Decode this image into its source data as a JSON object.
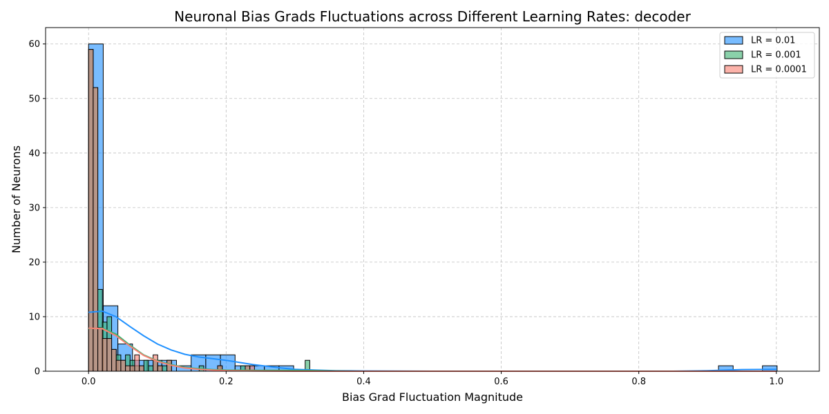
{
  "chart_data": {
    "type": "histogram",
    "title": "Neuronal Bias Grads Fluctuations across Different Learning Rates: decoder",
    "xlabel": "Bias Grad Fluctuation Magnitude",
    "ylabel": "Number of Neurons",
    "xlim": [
      -0.0625,
      1.0625
    ],
    "ylim": [
      0,
      63
    ],
    "xticks": [
      0.0,
      0.2,
      0.4,
      0.6,
      0.8,
      1.0
    ],
    "xtick_labels": [
      "0.0",
      "0.2",
      "0.4",
      "0.6",
      "0.8",
      "1.0"
    ],
    "yticks": [
      0,
      10,
      20,
      30,
      40,
      50,
      60
    ],
    "ytick_labels": [
      "0",
      "10",
      "20",
      "30",
      "40",
      "50",
      "60"
    ],
    "grid": true,
    "legend_position": "top-right",
    "series": [
      {
        "name": "LR = 0.01",
        "color": "#1e90ff",
        "bin_width": 0.0213,
        "bins": [
          {
            "x": 0.0,
            "count": 60
          },
          {
            "x": 0.0213,
            "count": 12
          },
          {
            "x": 0.0426,
            "count": 5
          },
          {
            "x": 0.0639,
            "count": 2
          },
          {
            "x": 0.0852,
            "count": 2
          },
          {
            "x": 0.1065,
            "count": 2
          },
          {
            "x": 0.1278,
            "count": 1
          },
          {
            "x": 0.1491,
            "count": 3
          },
          {
            "x": 0.1704,
            "count": 3
          },
          {
            "x": 0.1917,
            "count": 3
          },
          {
            "x": 0.213,
            "count": 1
          },
          {
            "x": 0.2343,
            "count": 1
          },
          {
            "x": 0.2556,
            "count": 1
          },
          {
            "x": 0.2769,
            "count": 1
          },
          {
            "x": 0.9159,
            "count": 1
          },
          {
            "x": 0.9798,
            "count": 1
          }
        ],
        "kde": [
          [
            0.0,
            10.8
          ],
          [
            0.02,
            11.0
          ],
          [
            0.04,
            10.0
          ],
          [
            0.06,
            8.2
          ],
          [
            0.08,
            6.5
          ],
          [
            0.1,
            5.0
          ],
          [
            0.12,
            3.9
          ],
          [
            0.14,
            3.1
          ],
          [
            0.16,
            2.6
          ],
          [
            0.18,
            2.3
          ],
          [
            0.2,
            2.0
          ],
          [
            0.22,
            1.6
          ],
          [
            0.24,
            1.2
          ],
          [
            0.26,
            0.9
          ],
          [
            0.28,
            0.6
          ],
          [
            0.3,
            0.35
          ],
          [
            0.33,
            0.2
          ],
          [
            0.36,
            0.1
          ],
          [
            0.4,
            0.05
          ],
          [
            0.5,
            0.0
          ],
          [
            0.7,
            0.0
          ],
          [
            0.85,
            0.0
          ],
          [
            0.9,
            0.1
          ],
          [
            0.95,
            0.3
          ],
          [
            1.0,
            0.35
          ]
        ]
      },
      {
        "name": "LR = 0.001",
        "color": "#3cb371",
        "bin_width": 0.0067,
        "bins": [
          {
            "x": 0.0,
            "count": 59
          },
          {
            "x": 0.0067,
            "count": 52
          },
          {
            "x": 0.0134,
            "count": 15
          },
          {
            "x": 0.0201,
            "count": 9
          },
          {
            "x": 0.0268,
            "count": 10
          },
          {
            "x": 0.0335,
            "count": 4
          },
          {
            "x": 0.0402,
            "count": 3
          },
          {
            "x": 0.0469,
            "count": 2
          },
          {
            "x": 0.0536,
            "count": 3
          },
          {
            "x": 0.0603,
            "count": 2
          },
          {
            "x": 0.067,
            "count": 1
          },
          {
            "x": 0.0737,
            "count": 1
          },
          {
            "x": 0.0804,
            "count": 2
          },
          {
            "x": 0.0871,
            "count": 1
          },
          {
            "x": 0.0938,
            "count": 2
          },
          {
            "x": 0.1005,
            "count": 1
          },
          {
            "x": 0.1072,
            "count": 1
          },
          {
            "x": 0.1139,
            "count": 2
          },
          {
            "x": 0.1608,
            "count": 1
          },
          {
            "x": 0.1876,
            "count": 1
          },
          {
            "x": 0.2211,
            "count": 1
          },
          {
            "x": 0.2278,
            "count": 1
          },
          {
            "x": 0.3149,
            "count": 2
          }
        ],
        "kde": [
          [
            0.0,
            7.8
          ],
          [
            0.02,
            7.9
          ],
          [
            0.04,
            6.8
          ],
          [
            0.06,
            4.8
          ],
          [
            0.08,
            3.0
          ],
          [
            0.1,
            1.9
          ],
          [
            0.12,
            1.2
          ],
          [
            0.14,
            0.7
          ],
          [
            0.16,
            0.45
          ],
          [
            0.18,
            0.3
          ],
          [
            0.2,
            0.2
          ],
          [
            0.25,
            0.15
          ],
          [
            0.3,
            0.15
          ],
          [
            0.33,
            0.12
          ],
          [
            0.36,
            0.05
          ],
          [
            0.4,
            0.0
          ],
          [
            1.0,
            0.0
          ]
        ]
      },
      {
        "name": "LR = 0.0001",
        "color": "#fa8072",
        "bin_width": 0.0067,
        "bins": [
          {
            "x": 0.0,
            "count": 59
          },
          {
            "x": 0.0067,
            "count": 52
          },
          {
            "x": 0.0134,
            "count": 8
          },
          {
            "x": 0.0201,
            "count": 6
          },
          {
            "x": 0.0268,
            "count": 6
          },
          {
            "x": 0.0335,
            "count": 4
          },
          {
            "x": 0.0402,
            "count": 2
          },
          {
            "x": 0.0469,
            "count": 2
          },
          {
            "x": 0.0536,
            "count": 1
          },
          {
            "x": 0.0603,
            "count": 1
          },
          {
            "x": 0.067,
            "count": 3
          },
          {
            "x": 0.0737,
            "count": 1
          },
          {
            "x": 0.0938,
            "count": 3
          },
          {
            "x": 0.1005,
            "count": 1
          },
          {
            "x": 0.1139,
            "count": 2
          },
          {
            "x": 0.1876,
            "count": 1
          },
          {
            "x": 0.2278,
            "count": 1
          },
          {
            "x": 0.2345,
            "count": 1
          }
        ],
        "kde": [
          [
            0.0,
            7.9
          ],
          [
            0.02,
            7.8
          ],
          [
            0.04,
            6.5
          ],
          [
            0.06,
            4.6
          ],
          [
            0.08,
            2.9
          ],
          [
            0.1,
            1.8
          ],
          [
            0.12,
            1.1
          ],
          [
            0.14,
            0.6
          ],
          [
            0.16,
            0.35
          ],
          [
            0.18,
            0.2
          ],
          [
            0.2,
            0.12
          ],
          [
            0.24,
            0.05
          ],
          [
            0.3,
            0.0
          ],
          [
            1.0,
            0.0
          ]
        ]
      }
    ]
  }
}
